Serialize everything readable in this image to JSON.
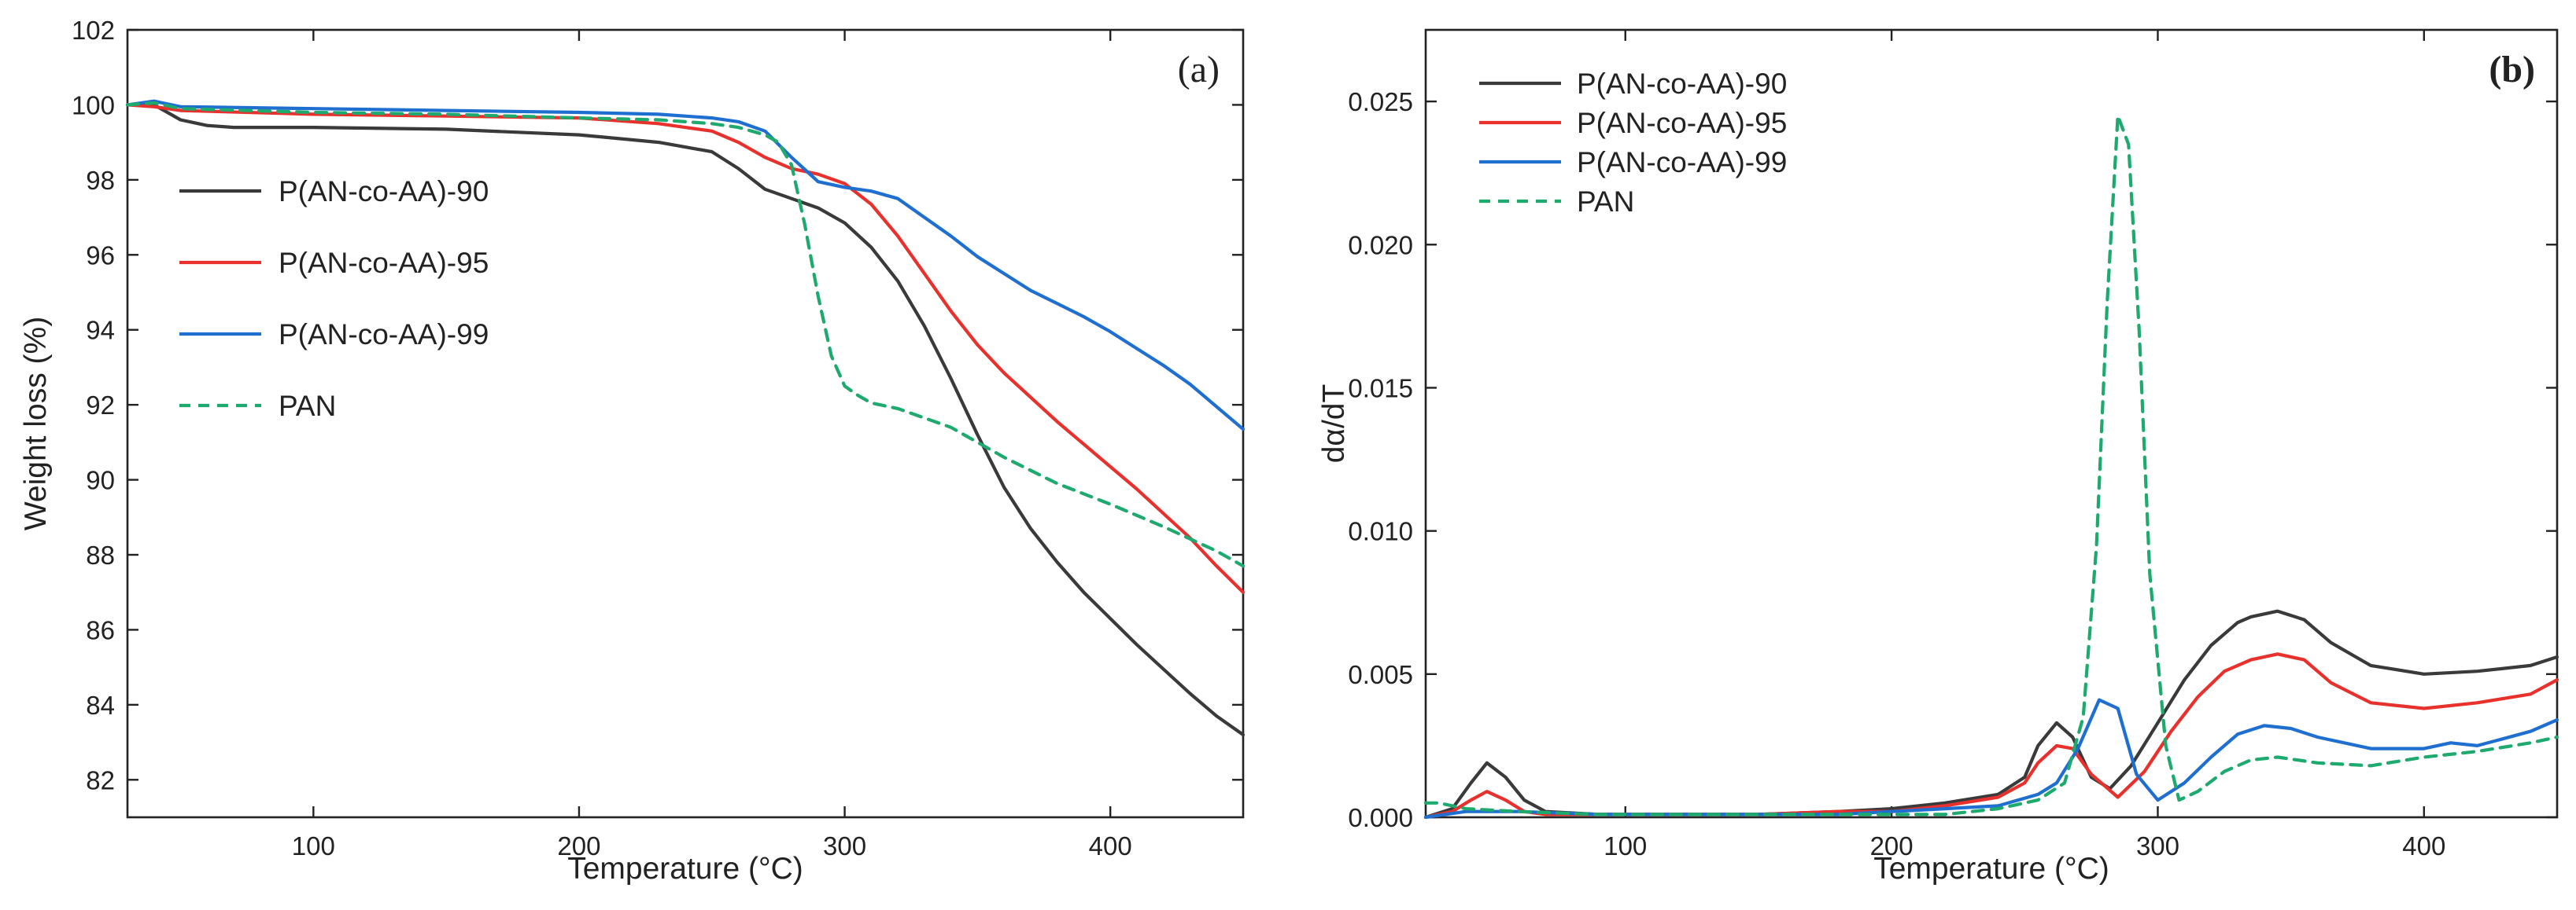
{
  "chart_data": [
    {
      "panel": "(a)",
      "type": "line",
      "xlabel": "Temperature (°C)",
      "ylabel": "Weight loss (%)",
      "xlim": [
        30,
        450
      ],
      "ylim": [
        81,
        102
      ],
      "xticks": [
        100,
        200,
        300,
        400
      ],
      "yticks": [
        82,
        84,
        86,
        88,
        90,
        92,
        94,
        96,
        98,
        100,
        102
      ],
      "legend_position": "center-left",
      "series": [
        {
          "name": "P(AN-co-AA)-90",
          "color": "#3a3a3a",
          "style": "solid",
          "x": [
            30,
            40,
            50,
            60,
            70,
            100,
            150,
            200,
            230,
            250,
            260,
            270,
            280,
            290,
            300,
            310,
            320,
            330,
            340,
            350,
            360,
            370,
            380,
            390,
            400,
            410,
            420,
            430,
            440,
            450
          ],
          "y": [
            100.0,
            100.0,
            99.6,
            99.45,
            99.4,
            99.4,
            99.35,
            99.2,
            99.0,
            98.75,
            98.3,
            97.75,
            97.5,
            97.25,
            96.85,
            96.2,
            95.3,
            94.1,
            92.7,
            91.2,
            89.8,
            88.7,
            87.8,
            87.0,
            86.3,
            85.6,
            84.95,
            84.3,
            83.7,
            83.2
          ]
        },
        {
          "name": "P(AN-co-AA)-95",
          "color": "#e8302c",
          "style": "solid",
          "x": [
            30,
            40,
            50,
            100,
            150,
            200,
            230,
            250,
            260,
            270,
            280,
            290,
            300,
            310,
            320,
            330,
            340,
            350,
            360,
            370,
            380,
            390,
            400,
            410,
            420,
            430,
            440,
            450
          ],
          "y": [
            100.0,
            99.95,
            99.85,
            99.75,
            99.7,
            99.65,
            99.5,
            99.3,
            99.0,
            98.6,
            98.3,
            98.15,
            97.9,
            97.35,
            96.5,
            95.5,
            94.5,
            93.6,
            92.85,
            92.2,
            91.55,
            90.95,
            90.35,
            89.75,
            89.1,
            88.45,
            87.7,
            87.0
          ]
        },
        {
          "name": "P(AN-co-AA)-99",
          "color": "#1f6fd1",
          "style": "solid",
          "x": [
            30,
            40,
            50,
            100,
            150,
            200,
            230,
            250,
            260,
            270,
            280,
            290,
            300,
            310,
            320,
            330,
            340,
            350,
            360,
            370,
            380,
            390,
            400,
            410,
            420,
            430,
            440,
            450
          ],
          "y": [
            100.0,
            100.1,
            99.95,
            99.9,
            99.85,
            99.8,
            99.75,
            99.65,
            99.55,
            99.3,
            98.6,
            97.95,
            97.8,
            97.7,
            97.5,
            97.0,
            96.5,
            95.95,
            95.5,
            95.05,
            94.7,
            94.35,
            93.95,
            93.5,
            93.05,
            92.55,
            91.95,
            91.35
          ]
        },
        {
          "name": "PAN",
          "color": "#1eaa6f",
          "style": "dashed",
          "x": [
            30,
            40,
            50,
            100,
            150,
            200,
            230,
            250,
            260,
            270,
            275,
            280,
            285,
            290,
            295,
            300,
            305,
            310,
            320,
            340,
            360,
            380,
            400,
            420,
            440,
            450
          ],
          "y": [
            100.0,
            100.05,
            99.9,
            99.8,
            99.75,
            99.65,
            99.6,
            99.5,
            99.4,
            99.2,
            99.0,
            98.4,
            96.8,
            94.9,
            93.3,
            92.5,
            92.25,
            92.05,
            91.9,
            91.4,
            90.6,
            89.9,
            89.35,
            88.75,
            88.1,
            87.7
          ]
        }
      ]
    },
    {
      "panel": "(b)",
      "type": "line",
      "xlabel": "Temperature (°C)",
      "ylabel": "dα/dT",
      "xlim": [
        25,
        450
      ],
      "ylim": [
        0,
        0.0275
      ],
      "xticks": [
        100,
        200,
        300,
        400
      ],
      "yticks": [
        0.0,
        0.005,
        0.01,
        0.015,
        0.02,
        0.025
      ],
      "ytick_labels": [
        "0.000",
        "0.005",
        "0.010",
        "0.015",
        "0.020",
        "0.025"
      ],
      "legend_position": "top-left",
      "series": [
        {
          "name": "P(AN-co-AA)-90",
          "color": "#3a3a3a",
          "style": "solid",
          "x": [
            25,
            35,
            42,
            48,
            55,
            62,
            70,
            90,
            120,
            150,
            180,
            200,
            220,
            240,
            250,
            255,
            262,
            268,
            275,
            282,
            290,
            300,
            310,
            320,
            330,
            335,
            345,
            355,
            365,
            380,
            400,
            420,
            440,
            450
          ],
          "y": [
            0.0,
            0.0003,
            0.0012,
            0.0019,
            0.0014,
            0.0006,
            0.0002,
            0.0001,
            0.0001,
            0.0001,
            0.0002,
            0.0003,
            0.0005,
            0.0008,
            0.0014,
            0.0025,
            0.0033,
            0.0028,
            0.0014,
            0.001,
            0.0018,
            0.0033,
            0.0048,
            0.006,
            0.0068,
            0.007,
            0.0072,
            0.0069,
            0.0061,
            0.0053,
            0.005,
            0.0051,
            0.0053,
            0.0056
          ]
        },
        {
          "name": "P(AN-co-AA)-95",
          "color": "#e8302c",
          "style": "solid",
          "x": [
            25,
            35,
            42,
            48,
            55,
            62,
            70,
            90,
            120,
            150,
            180,
            200,
            220,
            240,
            250,
            255,
            262,
            268,
            275,
            285,
            295,
            305,
            315,
            325,
            335,
            345,
            355,
            365,
            380,
            400,
            420,
            440,
            450
          ],
          "y": [
            0.0,
            0.0002,
            0.0006,
            0.0009,
            0.0006,
            0.0002,
            0.0001,
            0.0001,
            0.0001,
            0.0001,
            0.0002,
            0.0002,
            0.0004,
            0.0007,
            0.0012,
            0.0019,
            0.0025,
            0.0024,
            0.0015,
            0.0007,
            0.0016,
            0.003,
            0.0042,
            0.0051,
            0.0055,
            0.0057,
            0.0055,
            0.0047,
            0.004,
            0.0038,
            0.004,
            0.0043,
            0.0048
          ]
        },
        {
          "name": "P(AN-co-AA)-99",
          "color": "#1f6fd1",
          "style": "solid",
          "x": [
            25,
            40,
            60,
            90,
            120,
            150,
            180,
            200,
            220,
            240,
            255,
            262,
            270,
            278,
            285,
            292,
            300,
            310,
            320,
            330,
            340,
            350,
            360,
            380,
            400,
            410,
            420,
            440,
            450
          ],
          "y": [
            0.0,
            0.0002,
            0.0002,
            0.0001,
            0.0001,
            0.0001,
            0.0001,
            0.0002,
            0.0003,
            0.0004,
            0.0008,
            0.0012,
            0.0024,
            0.0041,
            0.0038,
            0.0015,
            0.0006,
            0.0012,
            0.0021,
            0.0029,
            0.0032,
            0.0031,
            0.0028,
            0.0024,
            0.0024,
            0.0026,
            0.0025,
            0.003,
            0.0034
          ]
        },
        {
          "name": "PAN",
          "color": "#1eaa6f",
          "style": "dashed",
          "x": [
            25,
            30,
            40,
            60,
            90,
            120,
            150,
            180,
            200,
            220,
            240,
            255,
            265,
            272,
            277,
            281,
            285,
            289,
            293,
            297,
            303,
            308,
            315,
            325,
            335,
            345,
            360,
            380,
            400,
            420,
            440,
            450
          ],
          "y": [
            0.0005,
            0.0005,
            0.0003,
            0.0002,
            0.0001,
            0.0001,
            0.0001,
            0.0001,
            0.0001,
            0.0001,
            0.0003,
            0.0006,
            0.0012,
            0.0035,
            0.0095,
            0.018,
            0.0245,
            0.0235,
            0.017,
            0.0085,
            0.0025,
            0.0006,
            0.0009,
            0.0016,
            0.002,
            0.0021,
            0.0019,
            0.0018,
            0.0021,
            0.0023,
            0.0026,
            0.0028
          ]
        }
      ]
    }
  ]
}
